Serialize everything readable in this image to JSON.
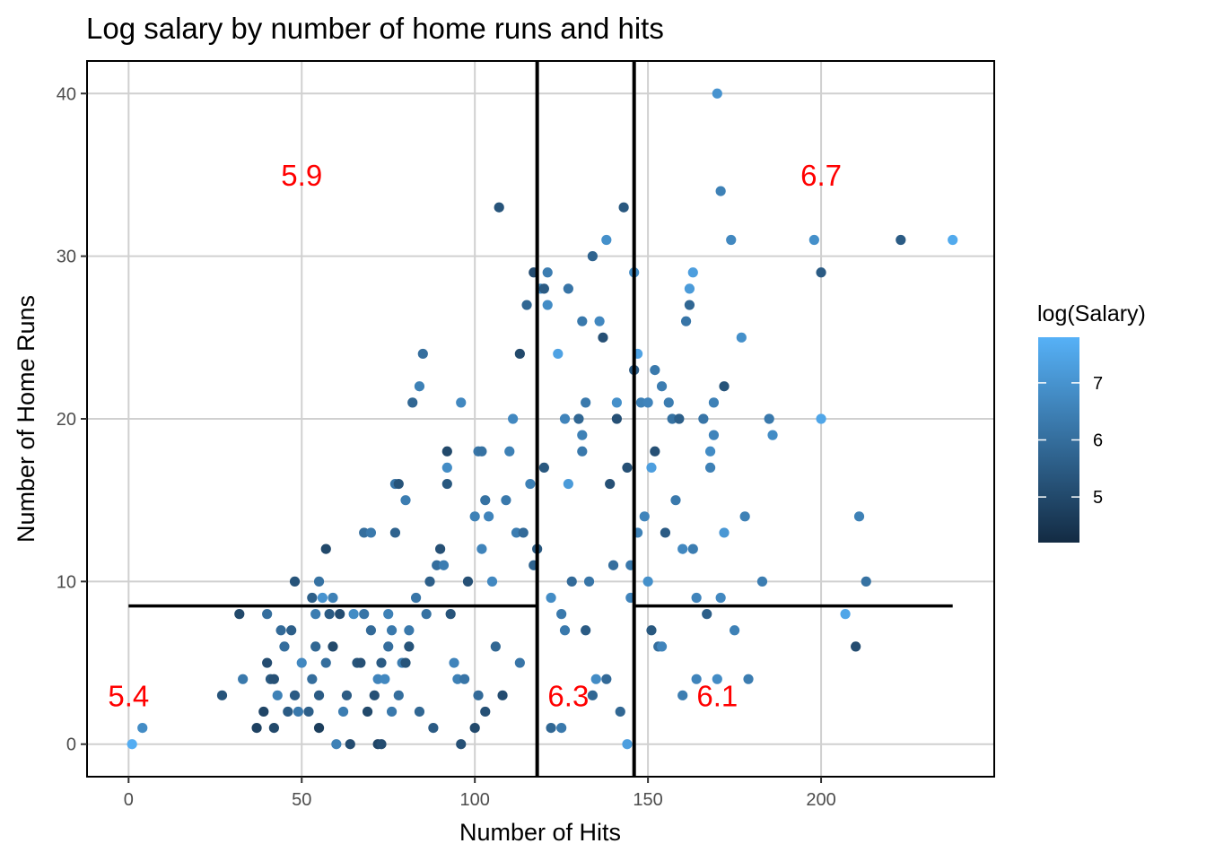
{
  "chart_data": {
    "type": "scatter",
    "title": "Log salary by number of home runs and hits",
    "xlabel": "Number of Hits",
    "ylabel": "Number of Home Runs",
    "xlim": [
      -12,
      250
    ],
    "ylim": [
      -2,
      42
    ],
    "x_ticks": [
      0,
      50,
      100,
      150,
      200
    ],
    "y_ticks": [
      0,
      10,
      20,
      30,
      40
    ],
    "x_tick_labels": [
      "0",
      "50",
      "100",
      "150",
      "200"
    ],
    "y_tick_labels": [
      "0",
      "10",
      "20",
      "30",
      "40"
    ],
    "grid": true,
    "legend": {
      "title": "log(Salary)",
      "placement": "right",
      "min": 4.2,
      "max": 7.8,
      "ticks": [
        5,
        6,
        7
      ],
      "tick_labels": [
        "5",
        "6",
        "7"
      ],
      "color_low": "#132B43",
      "color_high": "#56B1F7"
    },
    "splits": {
      "vertical": [
        {
          "x": 118
        },
        {
          "x": 146
        }
      ],
      "horizontal": [
        {
          "y": 8.5,
          "x_from": 0,
          "x_to": 118
        },
        {
          "y": 8.5,
          "x_from": 146,
          "x_to": 238
        }
      ]
    },
    "region_labels": [
      {
        "text": "5.9",
        "x": 50,
        "y": 35
      },
      {
        "text": "6.7",
        "x": 200,
        "y": 35
      },
      {
        "text": "5.4",
        "x": 0,
        "y": 3
      },
      {
        "text": "6.3",
        "x": 127,
        "y": 3
      },
      {
        "text": "6.1",
        "x": 170,
        "y": 3
      }
    ],
    "points": [
      [
        1,
        0,
        7.7
      ],
      [
        4,
        1,
        6.8
      ],
      [
        27,
        3,
        5.3
      ],
      [
        32,
        8,
        5.0
      ],
      [
        33,
        4,
        6.3
      ],
      [
        37,
        1,
        4.8
      ],
      [
        39,
        2,
        4.9
      ],
      [
        40,
        8,
        6.0
      ],
      [
        40,
        5,
        5.1
      ],
      [
        41,
        4,
        5.4
      ],
      [
        42,
        4,
        5.2
      ],
      [
        42,
        1,
        5.0
      ],
      [
        43,
        3,
        6.5
      ],
      [
        44,
        7,
        5.9
      ],
      [
        45,
        6,
        6.0
      ],
      [
        46,
        2,
        5.5
      ],
      [
        47,
        7,
        5.6
      ],
      [
        48,
        3,
        5.5
      ],
      [
        48,
        10,
        5.3
      ],
      [
        49,
        2,
        6.3
      ],
      [
        50,
        5,
        6.7
      ],
      [
        52,
        2,
        5.6
      ],
      [
        53,
        4,
        6.0
      ],
      [
        53,
        9,
        5.6
      ],
      [
        54,
        8,
        6.4
      ],
      [
        54,
        6,
        5.8
      ],
      [
        55,
        1,
        4.7
      ],
      [
        55,
        10,
        6.1
      ],
      [
        55,
        3,
        5.5
      ],
      [
        56,
        9,
        7.0
      ],
      [
        57,
        5,
        6.0
      ],
      [
        57,
        12,
        5.0
      ],
      [
        58,
        8,
        5.5
      ],
      [
        59,
        6,
        5.0
      ],
      [
        59,
        9,
        6.5
      ],
      [
        60,
        0,
        6.5
      ],
      [
        61,
        8,
        5.1
      ],
      [
        62,
        2,
        6.4
      ],
      [
        63,
        3,
        5.5
      ],
      [
        64,
        0,
        5.1
      ],
      [
        65,
        8,
        6.8
      ],
      [
        66,
        5,
        5.3
      ],
      [
        67,
        5,
        5.2
      ],
      [
        68,
        8,
        6.2
      ],
      [
        68,
        13,
        6.0
      ],
      [
        69,
        2,
        5.0
      ],
      [
        70,
        13,
        6.3
      ],
      [
        70,
        7,
        5.9
      ],
      [
        71,
        3,
        5.2
      ],
      [
        72,
        0,
        4.9
      ],
      [
        72,
        4,
        6.6
      ],
      [
        73,
        0,
        5.1
      ],
      [
        73,
        5,
        5.5
      ],
      [
        74,
        4,
        6.7
      ],
      [
        75,
        8,
        6.5
      ],
      [
        75,
        6,
        6.0
      ],
      [
        76,
        7,
        6.3
      ],
      [
        76,
        2,
        6.3
      ],
      [
        77,
        13,
        5.7
      ],
      [
        77,
        16,
        6.2
      ],
      [
        78,
        16,
        5.3
      ],
      [
        78,
        3,
        6.0
      ],
      [
        79,
        5,
        6.4
      ],
      [
        80,
        5,
        5.3
      ],
      [
        80,
        15,
        6.4
      ],
      [
        81,
        7,
        6.3
      ],
      [
        81,
        6,
        5.3
      ],
      [
        82,
        21,
        5.8
      ],
      [
        83,
        9,
        6.2
      ],
      [
        84,
        22,
        6.5
      ],
      [
        84,
        2,
        5.8
      ],
      [
        85,
        24,
        6.0
      ],
      [
        86,
        8,
        6.1
      ],
      [
        87,
        10,
        5.6
      ],
      [
        88,
        1,
        5.5
      ],
      [
        89,
        11,
        6.0
      ],
      [
        90,
        12,
        5.2
      ],
      [
        91,
        11,
        6.4
      ],
      [
        92,
        18,
        5.0
      ],
      [
        92,
        16,
        5.4
      ],
      [
        92,
        17,
        6.8
      ],
      [
        93,
        8,
        5.3
      ],
      [
        94,
        5,
        6.6
      ],
      [
        95,
        4,
        6.5
      ],
      [
        96,
        21,
        6.7
      ],
      [
        96,
        0,
        5.2
      ],
      [
        97,
        4,
        6.2
      ],
      [
        98,
        10,
        5.2
      ],
      [
        100,
        1,
        5.0
      ],
      [
        100,
        14,
        6.5
      ],
      [
        101,
        18,
        6.2
      ],
      [
        101,
        3,
        5.9
      ],
      [
        102,
        18,
        6.1
      ],
      [
        102,
        12,
        6.6
      ],
      [
        103,
        15,
        6.1
      ],
      [
        103,
        2,
        5.2
      ],
      [
        104,
        14,
        6.6
      ],
      [
        105,
        10,
        6.7
      ],
      [
        106,
        6,
        5.8
      ],
      [
        107,
        33,
        5.3
      ],
      [
        108,
        3,
        5.1
      ],
      [
        109,
        15,
        6.3
      ],
      [
        110,
        18,
        6.5
      ],
      [
        111,
        20,
        6.7
      ],
      [
        112,
        13,
        6.4
      ],
      [
        113,
        24,
        5.0
      ],
      [
        113,
        5,
        6.2
      ],
      [
        114,
        13,
        5.9
      ],
      [
        115,
        27,
        5.8
      ],
      [
        116,
        16,
        6.5
      ],
      [
        117,
        11,
        5.7
      ],
      [
        117,
        29,
        5.1
      ],
      [
        118,
        12,
        5.4
      ],
      [
        119,
        28,
        6.8
      ],
      [
        120,
        28,
        5.5
      ],
      [
        120,
        17,
        5.4
      ],
      [
        121,
        29,
        6.4
      ],
      [
        121,
        27,
        6.8
      ],
      [
        122,
        9,
        6.8
      ],
      [
        122,
        1,
        5.8
      ],
      [
        124,
        24,
        7.4
      ],
      [
        125,
        1,
        6.3
      ],
      [
        125,
        8,
        6.3
      ],
      [
        126,
        20,
        6.6
      ],
      [
        126,
        7,
        6.3
      ],
      [
        127,
        28,
        6.2
      ],
      [
        127,
        16,
        7.2
      ],
      [
        128,
        10,
        5.9
      ],
      [
        130,
        20,
        5.8
      ],
      [
        131,
        26,
        6.3
      ],
      [
        131,
        18,
        6.3
      ],
      [
        131,
        19,
        6.5
      ],
      [
        132,
        21,
        6.3
      ],
      [
        132,
        7,
        5.5
      ],
      [
        133,
        10,
        6.2
      ],
      [
        134,
        30,
        5.7
      ],
      [
        134,
        3,
        5.8
      ],
      [
        135,
        4,
        6.8
      ],
      [
        136,
        26,
        6.7
      ],
      [
        137,
        25,
        5.2
      ],
      [
        138,
        31,
        6.9
      ],
      [
        138,
        4,
        5.9
      ],
      [
        139,
        16,
        5.2
      ],
      [
        140,
        11,
        6.0
      ],
      [
        141,
        20,
        5.2
      ],
      [
        141,
        21,
        6.9
      ],
      [
        142,
        2,
        5.8
      ],
      [
        143,
        33,
        5.4
      ],
      [
        144,
        17,
        5.2
      ],
      [
        144,
        0,
        7.3
      ],
      [
        145,
        9,
        6.6
      ],
      [
        145,
        11,
        6.3
      ],
      [
        146,
        23,
        5.5
      ],
      [
        146,
        29,
        6.8
      ],
      [
        147,
        24,
        7.4
      ],
      [
        147,
        13,
        6.5
      ],
      [
        148,
        21,
        6.5
      ],
      [
        149,
        14,
        6.6
      ],
      [
        150,
        21,
        6.6
      ],
      [
        150,
        10,
        6.9
      ],
      [
        151,
        17,
        7.3
      ],
      [
        151,
        7,
        5.4
      ],
      [
        152,
        18,
        5.2
      ],
      [
        152,
        23,
        6.3
      ],
      [
        153,
        6,
        6.0
      ],
      [
        154,
        22,
        6.4
      ],
      [
        154,
        6,
        6.6
      ],
      [
        155,
        13,
        5.5
      ],
      [
        156,
        21,
        6.4
      ],
      [
        157,
        20,
        6.1
      ],
      [
        158,
        15,
        6.3
      ],
      [
        159,
        20,
        5.6
      ],
      [
        160,
        12,
        6.7
      ],
      [
        160,
        3,
        6.4
      ],
      [
        161,
        26,
        6.2
      ],
      [
        162,
        28,
        7.2
      ],
      [
        162,
        27,
        5.8
      ],
      [
        163,
        29,
        7.3
      ],
      [
        163,
        12,
        6.4
      ],
      [
        164,
        9,
        6.6
      ],
      [
        164,
        4,
        6.6
      ],
      [
        166,
        20,
        6.2
      ],
      [
        167,
        8,
        5.6
      ],
      [
        168,
        17,
        6.5
      ],
      [
        168,
        18,
        6.8
      ],
      [
        169,
        19,
        6.6
      ],
      [
        169,
        21,
        6.5
      ],
      [
        170,
        4,
        6.8
      ],
      [
        170,
        40,
        7.0
      ],
      [
        171,
        9,
        6.7
      ],
      [
        171,
        34,
        6.5
      ],
      [
        172,
        22,
        5.3
      ],
      [
        172,
        13,
        7.1
      ],
      [
        174,
        31,
        6.7
      ],
      [
        175,
        7,
        6.5
      ],
      [
        177,
        25,
        6.9
      ],
      [
        178,
        14,
        6.5
      ],
      [
        179,
        4,
        6.4
      ],
      [
        183,
        10,
        6.4
      ],
      [
        185,
        20,
        6.3
      ],
      [
        186,
        19,
        6.8
      ],
      [
        198,
        31,
        6.9
      ],
      [
        200,
        20,
        7.5
      ],
      [
        200,
        29,
        5.5
      ],
      [
        207,
        8,
        7.5
      ],
      [
        210,
        6,
        5.1
      ],
      [
        211,
        14,
        6.5
      ],
      [
        213,
        10,
        6.1
      ],
      [
        223,
        31,
        5.5
      ],
      [
        238,
        31,
        7.6
      ]
    ]
  }
}
